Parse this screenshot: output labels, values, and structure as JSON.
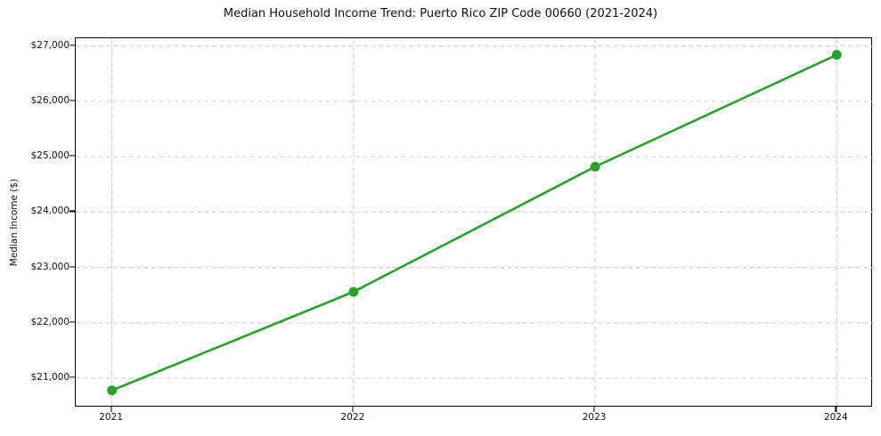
{
  "chart_data": {
    "type": "line",
    "title": "Median Household Income Trend: Puerto Rico ZIP Code 00660 (2021-2024)",
    "xlabel": "",
    "ylabel": "Median Income ($)",
    "categories": [
      "2021",
      "2022",
      "2023",
      "2024"
    ],
    "x": [
      2021,
      2022,
      2023,
      2024
    ],
    "series": [
      {
        "name": "Median Household Income",
        "values": [
          20780,
          22560,
          24820,
          26840
        ],
        "color": "#2ca02c",
        "marker": "circle",
        "marker_size": 11,
        "line_width": 2.6
      }
    ],
    "xlim": [
      2020.85,
      2024.15
    ],
    "ylim": [
      20470,
      27140
    ],
    "yticks": [
      21000,
      22000,
      23000,
      24000,
      25000,
      26000,
      27000
    ],
    "ytick_labels": [
      "$21,000",
      "$22,000",
      "$23,000",
      "$24,000",
      "$25,000",
      "$26,000",
      "$27,000"
    ],
    "xticks": [
      2021,
      2022,
      2023,
      2024
    ],
    "xtick_labels": [
      "2021",
      "2022",
      "2023",
      "2024"
    ],
    "grid": true,
    "grid_style": "dashed",
    "grid_color": "#c9c9c9",
    "axis_color": "#000000",
    "background_color": "#ffffff",
    "legend": "none"
  }
}
